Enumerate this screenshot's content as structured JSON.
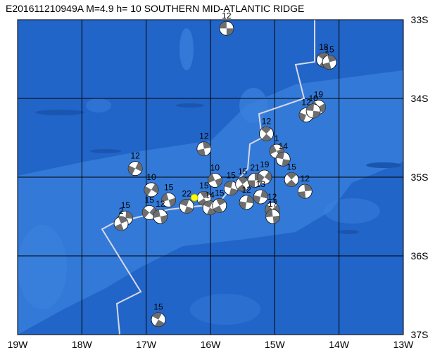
{
  "title": "E201611210949A  M=4.9  h= 10 SOUTHERN MID-ATLANTIC RIDGE",
  "lonlim": [
    -19,
    -13
  ],
  "latlim": [
    -33,
    -37
  ],
  "lonticks": [
    {
      "value": -19,
      "label": "19W"
    },
    {
      "value": -18,
      "label": "18W"
    },
    {
      "value": -17,
      "label": "17W"
    },
    {
      "value": -16,
      "label": "16W"
    },
    {
      "value": -15,
      "label": "15W"
    },
    {
      "value": -14,
      "label": "14W"
    },
    {
      "value": -13,
      "label": "13W"
    }
  ],
  "latticks": [
    {
      "value": -33,
      "label": "33S"
    },
    {
      "value": -34,
      "label": "34S"
    },
    {
      "value": -35,
      "label": "35S"
    },
    {
      "value": -36,
      "label": "36S"
    },
    {
      "value": -37,
      "label": "37S"
    }
  ],
  "epicenter": {
    "lon": -16.25,
    "lat": -35.26
  },
  "events": [
    {
      "label": "12",
      "lon": -15.75,
      "lat": -33.11
    },
    {
      "label": "18",
      "lon": -14.24,
      "lat": -33.51
    },
    {
      "label": "15",
      "lon": -14.15,
      "lat": -33.54
    },
    {
      "label": "12",
      "lon": -14.51,
      "lat": -34.21
    },
    {
      "label": "19",
      "lon": -14.32,
      "lat": -34.11
    },
    {
      "label": "10",
      "lon": -14.4,
      "lat": -34.16
    },
    {
      "label": "12",
      "lon": -15.13,
      "lat": -34.45
    },
    {
      "label": "12",
      "lon": -16.1,
      "lat": -34.64
    },
    {
      "label": "12",
      "lon": -17.17,
      "lat": -34.89
    },
    {
      "label": "1",
      "lon": -14.97,
      "lat": -34.67
    },
    {
      "label": "14",
      "lon": -14.87,
      "lat": -34.77
    },
    {
      "label": "15",
      "lon": -14.74,
      "lat": -35.03
    },
    {
      "label": "12",
      "lon": -14.53,
      "lat": -35.18
    },
    {
      "label": "10",
      "lon": -16.92,
      "lat": -35.16
    },
    {
      "label": "10",
      "lon": -15.93,
      "lat": -35.04
    },
    {
      "label": "15",
      "lon": -15.68,
      "lat": -35.14
    },
    {
      "label": "15",
      "lon": -15.5,
      "lat": -35.09
    },
    {
      "label": "21",
      "lon": -15.31,
      "lat": -35.04
    },
    {
      "label": "19",
      "lon": -15.16,
      "lat": -35.0
    },
    {
      "label": "15",
      "lon": -16.65,
      "lat": -35.29
    },
    {
      "label": "22",
      "lon": -16.37,
      "lat": -35.37
    },
    {
      "label": "15",
      "lon": -16.1,
      "lat": -35.27
    },
    {
      "label": "15",
      "lon": -17.32,
      "lat": -35.52
    },
    {
      "label": "15",
      "lon": -16.95,
      "lat": -35.45
    },
    {
      "label": "12",
      "lon": -16.78,
      "lat": -35.5
    },
    {
      "label": "14",
      "lon": -16.01,
      "lat": -35.39
    },
    {
      "label": "15",
      "lon": -15.86,
      "lat": -35.36
    },
    {
      "label": "12",
      "lon": -15.44,
      "lat": -35.32
    },
    {
      "label": "12",
      "lon": -15.04,
      "lat": -35.41
    },
    {
      "label": "17",
      "lon": -15.03,
      "lat": -35.5
    },
    {
      "label": "15",
      "lon": -16.81,
      "lat": -36.81
    },
    {
      "label": "2",
      "lon": -17.39,
      "lat": -35.59
    },
    {
      "label": "13",
      "lon": -15.22,
      "lat": -35.25
    }
  ]
}
